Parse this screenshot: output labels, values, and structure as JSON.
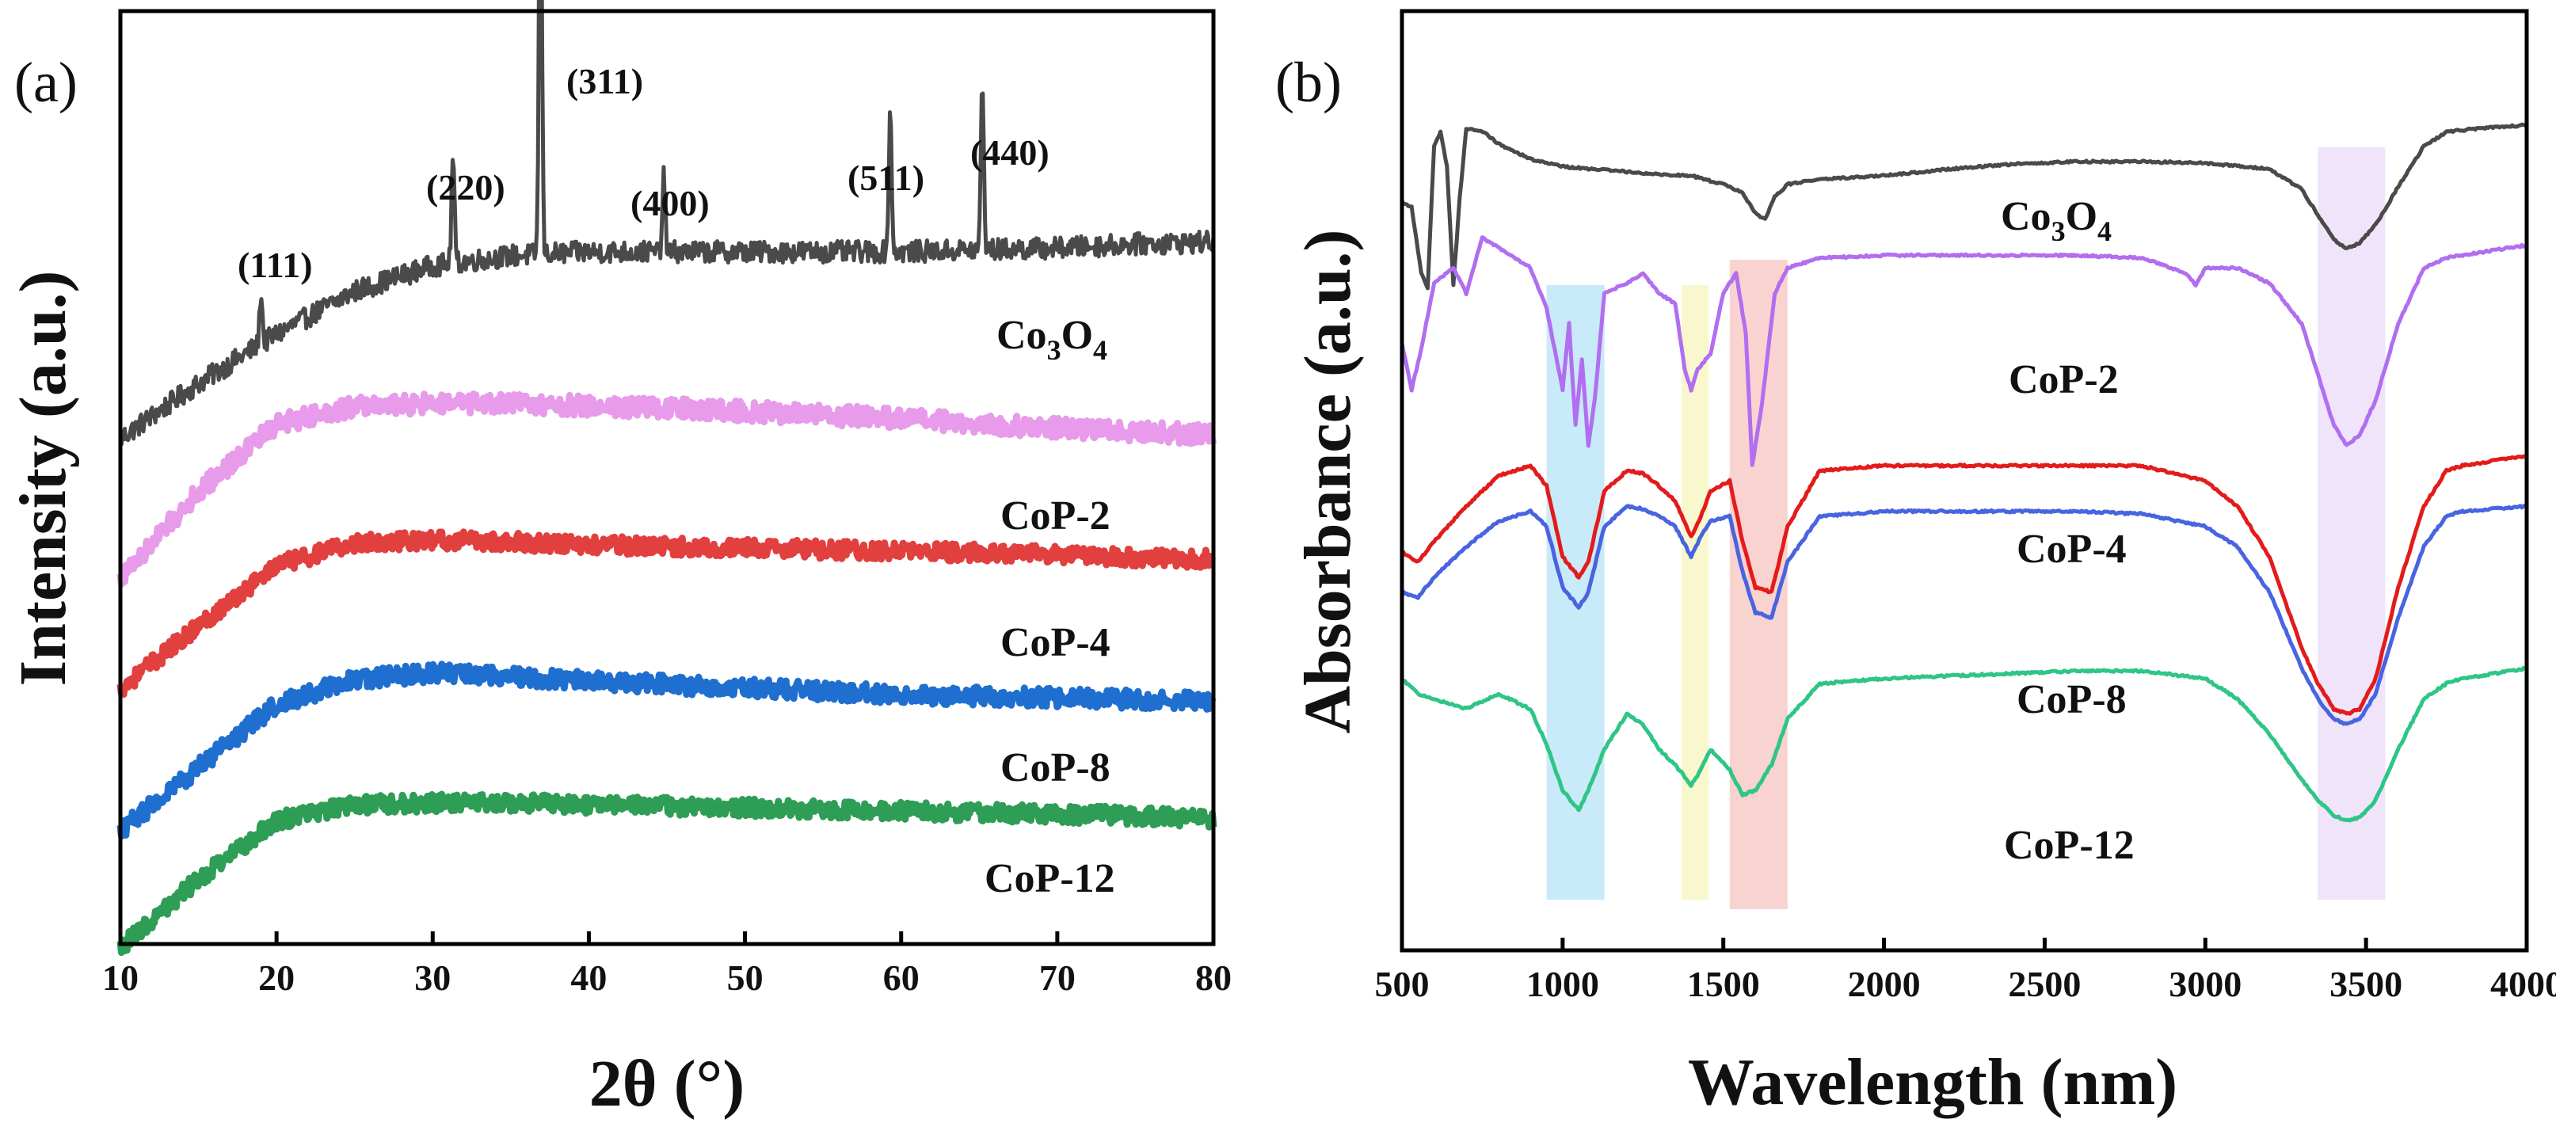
{
  "chart_data": [
    {
      "panel": "(a)",
      "type": "line",
      "title": "",
      "xlabel": "2θ (°)",
      "ylabel": "Intensity (a.u.)",
      "xlim": [
        10,
        80
      ],
      "xticks": [
        "10",
        "20",
        "30",
        "40",
        "50",
        "60",
        "70",
        "80"
      ],
      "yticks": [],
      "grid": false,
      "series": [
        {
          "name": "Co₃O₄",
          "label_main": "Co",
          "label_sub1": "3",
          "label_o": "O",
          "label_sub2": "4",
          "color": "#4a4a4a",
          "x": [
            10,
            15,
            20,
            25,
            30,
            35,
            40,
            45,
            50,
            55,
            60,
            65,
            70,
            75,
            80
          ],
          "y": [
            0.05,
            0.33,
            0.58,
            0.8,
            0.93,
            0.98,
            1.0,
            1.0,
            1.0,
            1.0,
            1.0,
            1.01,
            1.02,
            1.04,
            1.05
          ],
          "peaks": [
            {
              "label": "(111)",
              "x": 19.0,
              "height": 0.26
            },
            {
              "label": "(220)",
              "x": 31.3,
              "height": 0.55
            },
            {
              "label": "(311)",
              "x": 36.9,
              "height": 2.28
            },
            {
              "label": "(400)",
              "x": 44.8,
              "height": 0.38
            },
            {
              "label": "(511)",
              "x": 59.3,
              "height": 0.71
            },
            {
              "label": "(440)",
              "x": 65.2,
              "height": 0.86
            }
          ]
        },
        {
          "name": "CoP-2",
          "color": "#e79bea",
          "x": [
            10,
            15,
            20,
            25,
            30,
            35,
            40,
            45,
            50,
            55,
            60,
            65,
            70,
            75,
            80
          ],
          "y": [
            0.1,
            0.58,
            0.95,
            1.05,
            1.06,
            1.06,
            1.05,
            1.04,
            1.02,
            1.0,
            0.98,
            0.95,
            0.93,
            0.91,
            0.89
          ]
        },
        {
          "name": "CoP-4",
          "color": "#e23f3f",
          "x": [
            10,
            15,
            20,
            25,
            30,
            35,
            40,
            45,
            50,
            55,
            60,
            65,
            70,
            75,
            80
          ],
          "y": [
            0.1,
            0.5,
            0.88,
            1.02,
            1.04,
            1.03,
            1.01,
            1.0,
            0.99,
            0.98,
            0.97,
            0.96,
            0.95,
            0.93,
            0.92
          ]
        },
        {
          "name": "CoP-8",
          "color": "#1f6fd0",
          "x": [
            10,
            15,
            20,
            25,
            30,
            35,
            40,
            45,
            50,
            55,
            60,
            65,
            70,
            75,
            80
          ],
          "y": [
            0.1,
            0.48,
            0.86,
            1.01,
            1.05,
            1.03,
            1.0,
            0.98,
            0.96,
            0.94,
            0.92,
            0.91,
            0.9,
            0.89,
            0.88
          ]
        },
        {
          "name": "CoP-12",
          "color": "#2e9d55",
          "x": [
            10,
            15,
            20,
            25,
            30,
            35,
            40,
            45,
            50,
            55,
            60,
            65,
            70,
            75,
            80
          ],
          "y": [
            0.12,
            0.55,
            0.92,
            1.02,
            1.03,
            1.03,
            1.02,
            1.01,
            1.0,
            0.99,
            0.98,
            0.97,
            0.96,
            0.95,
            0.93
          ]
        }
      ]
    },
    {
      "panel": "(b)",
      "type": "line",
      "title": "",
      "xlabel": "Wavelength (nm)",
      "ylabel": "Absorbance (a.u.)",
      "xlim": [
        500,
        4000
      ],
      "xticks": [
        "500",
        "1000",
        "1500",
        "2000",
        "2500",
        "3000",
        "3500",
        "4000"
      ],
      "yticks": [],
      "grid": false,
      "highlight_bands": [
        {
          "x0": 950,
          "x1": 1130,
          "color": "#bfe6f7"
        },
        {
          "x0": 1370,
          "x1": 1455,
          "color": "#f8f6c6"
        },
        {
          "x0": 1520,
          "x1": 1700,
          "color": "#f8cbc8"
        },
        {
          "x0": 3350,
          "x1": 3560,
          "color": "#ecdff9"
        }
      ],
      "series": [
        {
          "name": "Co₃O₄",
          "label_main": "Co",
          "label_sub1": "3",
          "label_o": "O",
          "label_sub2": "4",
          "color": "#4a4a4a",
          "x": [
            500,
            530,
            560,
            580,
            600,
            620,
            640,
            660,
            680,
            700,
            750,
            800,
            900,
            1000,
            1100,
            1200,
            1300,
            1400,
            1500,
            1560,
            1600,
            1630,
            1660,
            1700,
            1800,
            2000,
            2200,
            2400,
            2600,
            2800,
            3000,
            3200,
            3300,
            3350,
            3400,
            3440,
            3480,
            3530,
            3600,
            3680,
            3750,
            3800,
            3900,
            4000
          ],
          "y": [
            8.2,
            8.1,
            6.8,
            6.5,
            9.3,
            9.6,
            8.9,
            6.55,
            8.3,
            9.65,
            9.6,
            9.35,
            9.05,
            8.9,
            8.85,
            8.8,
            8.75,
            8.72,
            8.55,
            8.38,
            7.98,
            7.85,
            8.3,
            8.55,
            8.65,
            8.72,
            8.85,
            8.95,
            9.0,
            9.0,
            8.97,
            8.85,
            8.45,
            7.95,
            7.45,
            7.28,
            7.4,
            7.75,
            8.5,
            9.3,
            9.58,
            9.62,
            9.68,
            9.72
          ]
        },
        {
          "name": "CoP-2",
          "color": "#b16ef0",
          "x": [
            500,
            530,
            560,
            600,
            660,
            700,
            750,
            800,
            850,
            900,
            950,
            1000,
            1020,
            1040,
            1060,
            1080,
            1100,
            1130,
            1200,
            1250,
            1300,
            1350,
            1380,
            1400,
            1420,
            1460,
            1500,
            1540,
            1570,
            1590,
            1620,
            1660,
            1700,
            1800,
            2000,
            2200,
            2400,
            2600,
            2800,
            2940,
            2970,
            3000,
            3100,
            3200,
            3300,
            3350,
            3400,
            3440,
            3480,
            3530,
            3600,
            3680,
            3750,
            3800,
            3900,
            4000
          ],
          "y": [
            5.4,
            4.5,
            5.3,
            6.6,
            6.9,
            6.4,
            7.5,
            7.3,
            7.1,
            6.9,
            6.1,
            4.5,
            5.8,
            3.8,
            5.1,
            3.4,
            4.3,
            6.4,
            6.6,
            6.8,
            6.4,
            6.2,
            4.9,
            4.5,
            4.9,
            5.2,
            6.4,
            6.8,
            5.6,
            3.0,
            4.2,
            6.4,
            6.9,
            7.1,
            7.15,
            7.15,
            7.15,
            7.15,
            7.1,
            6.8,
            6.55,
            6.9,
            6.9,
            6.6,
            5.8,
            4.8,
            3.8,
            3.4,
            3.6,
            4.3,
            5.8,
            6.9,
            7.1,
            7.15,
            7.25,
            7.35
          ]
        },
        {
          "name": "CoP-4",
          "color": "#e31b1b",
          "x": [
            500,
            550,
            600,
            700,
            800,
            900,
            950,
            1000,
            1050,
            1080,
            1130,
            1200,
            1250,
            1300,
            1350,
            1400,
            1430,
            1460,
            1520,
            1560,
            1600,
            1650,
            1700,
            1800,
            2000,
            2200,
            2400,
            2600,
            2800,
            3000,
            3100,
            3200,
            3300,
            3350,
            3400,
            3440,
            3480,
            3530,
            3600,
            3680,
            3750,
            3800,
            3900,
            4000
          ],
          "y": [
            1.3,
            1.1,
            1.5,
            2.2,
            2.8,
            3.0,
            2.6,
            1.2,
            0.8,
            1.1,
            2.5,
            2.9,
            2.85,
            2.6,
            2.3,
            1.6,
            2.0,
            2.5,
            2.7,
            1.5,
            0.6,
            0.5,
            1.8,
            2.9,
            3.0,
            3.0,
            3.0,
            3.0,
            3.0,
            2.7,
            2.2,
            1.2,
            -0.6,
            -1.3,
            -1.8,
            -1.9,
            -1.8,
            -1.2,
            0.6,
            2.2,
            2.9,
            3.0,
            3.1,
            3.2
          ]
        },
        {
          "name": "CoP-8",
          "color": "#4864e0",
          "x": [
            500,
            550,
            600,
            700,
            800,
            900,
            950,
            1000,
            1050,
            1080,
            1130,
            1200,
            1250,
            1300,
            1350,
            1400,
            1430,
            1460,
            1520,
            1560,
            1600,
            1650,
            1700,
            1800,
            2000,
            2200,
            2400,
            2600,
            2800,
            3000,
            3100,
            3200,
            3300,
            3350,
            3400,
            3440,
            3480,
            3530,
            3600,
            3680,
            3750,
            3800,
            3900,
            4000
          ],
          "y": [
            0.5,
            0.4,
            0.8,
            1.4,
            1.9,
            2.1,
            1.8,
            0.6,
            0.2,
            0.5,
            1.8,
            2.2,
            2.15,
            2.0,
            1.8,
            1.2,
            1.6,
            1.9,
            2.0,
            0.9,
            0.1,
            0.0,
            1.1,
            2.0,
            2.1,
            2.1,
            2.1,
            2.1,
            2.05,
            1.8,
            1.4,
            0.5,
            -1.0,
            -1.6,
            -2.0,
            -2.1,
            -2.0,
            -1.5,
            0.0,
            1.4,
            2.0,
            2.1,
            2.15,
            2.2
          ]
        },
        {
          "name": "CoP-12",
          "color": "#2fc586",
          "x": [
            500,
            550,
            600,
            700,
            800,
            900,
            950,
            1000,
            1050,
            1080,
            1130,
            1200,
            1250,
            1300,
            1350,
            1400,
            1430,
            1460,
            1520,
            1560,
            1600,
            1650,
            1700,
            1800,
            2000,
            2200,
            2400,
            2600,
            2800,
            3000,
            3100,
            3200,
            3300,
            3350,
            3400,
            3440,
            3480,
            3530,
            3600,
            3680,
            3750,
            3800,
            3900,
            4000
          ],
          "y": [
            -1.2,
            -1.5,
            -1.6,
            -1.8,
            -1.5,
            -1.8,
            -2.5,
            -3.4,
            -3.8,
            -3.4,
            -2.6,
            -1.9,
            -2.1,
            -2.6,
            -2.9,
            -3.3,
            -3.0,
            -2.6,
            -3.0,
            -3.5,
            -3.4,
            -2.9,
            -2.0,
            -1.3,
            -1.2,
            -1.15,
            -1.1,
            -1.05,
            -1.05,
            -1.2,
            -1.6,
            -2.3,
            -3.2,
            -3.6,
            -3.9,
            -4.0,
            -3.95,
            -3.6,
            -2.6,
            -1.6,
            -1.3,
            -1.2,
            -1.1,
            -1.0
          ]
        }
      ]
    }
  ]
}
